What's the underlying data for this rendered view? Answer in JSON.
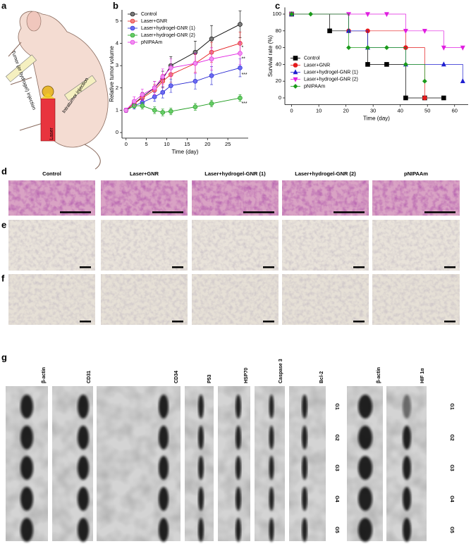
{
  "panel_labels": [
    "a",
    "b",
    "c",
    "d",
    "e",
    "f",
    "g"
  ],
  "panel_a": {
    "left_injection": "Tumor (or hydrogel) injection",
    "right_injection": "Intratumor injection",
    "laser": "Laser"
  },
  "chart_data": [
    {
      "type": "line",
      "xlabel": "Time (day)",
      "ylabel": "Relative tumor volume",
      "x": [
        0,
        2,
        4,
        7,
        9,
        11,
        17,
        21,
        28
      ],
      "xlim": [
        -1,
        30
      ],
      "xticks": [
        0,
        5,
        10,
        15,
        20,
        25
      ],
      "ylim": [
        -0.25,
        5.5
      ],
      "yticks": [
        0,
        1,
        2,
        3,
        4,
        5
      ],
      "legend": "upper left",
      "series": [
        {
          "name": "Control",
          "color": "#000000",
          "fill": "#7a7a7a",
          "values": [
            1,
            1.3,
            1.6,
            2.0,
            2.4,
            3.0,
            3.6,
            4.2,
            4.85
          ],
          "errors": [
            0.1,
            0.15,
            0.2,
            0.3,
            0.35,
            0.4,
            0.5,
            0.6,
            0.6
          ]
        },
        {
          "name": "Laser+GNR",
          "color": "#e41a1c",
          "fill": "#f08080",
          "values": [
            1,
            1.3,
            1.55,
            1.9,
            2.3,
            2.6,
            3.1,
            3.6,
            4.0
          ],
          "errors": [
            0.1,
            0.15,
            0.2,
            0.25,
            0.3,
            0.35,
            0.4,
            0.45,
            0.5
          ]
        },
        {
          "name": "Laser+hydrogel-GNR (1)",
          "color": "#1f1fd0",
          "fill": "#6a6af0",
          "values": [
            1,
            1.2,
            1.35,
            1.6,
            1.8,
            2.1,
            2.3,
            2.55,
            2.9
          ],
          "errors": [
            0.1,
            0.15,
            0.15,
            0.2,
            0.25,
            0.3,
            0.35,
            0.4,
            0.4
          ]
        },
        {
          "name": "Laser+hydrogel-GNR (2)",
          "color": "#1a9a1a",
          "fill": "#66cc66",
          "values": [
            1,
            1.2,
            1.2,
            1.0,
            0.9,
            0.95,
            1.15,
            1.3,
            1.55
          ],
          "errors": [
            0.1,
            0.1,
            0.15,
            0.15,
            0.15,
            0.15,
            0.15,
            0.15,
            0.15
          ]
        },
        {
          "name": "pNIPAAm",
          "color": "#e01ee0",
          "fill": "#f08ff0",
          "values": [
            1,
            1.4,
            1.7,
            2.0,
            2.5,
            2.9,
            3.1,
            3.3,
            3.55
          ],
          "errors": [
            0.1,
            0.2,
            0.25,
            0.3,
            0.35,
            0.4,
            0.45,
            0.5,
            0.5
          ]
        }
      ],
      "annotations": [
        "*",
        "**",
        "***",
        "***"
      ]
    },
    {
      "type": "step",
      "xlabel": "Time (day)",
      "ylabel": "Survival rate (%)",
      "xlim": [
        -2.5,
        65
      ],
      "xticks": [
        0,
        10,
        20,
        30,
        40,
        50,
        60
      ],
      "ylim": [
        -8,
        108
      ],
      "yticks": [
        0,
        20,
        40,
        60,
        80,
        100
      ],
      "legend": "lower left",
      "series": [
        {
          "name": "Control",
          "color": "#000000",
          "marker": "square",
          "x": [
            0,
            14,
            28,
            35,
            42,
            49,
            56
          ],
          "values": [
            100,
            80,
            40,
            40,
            0,
            0,
            0
          ]
        },
        {
          "name": "Laser+GNR",
          "color": "#e41a1c",
          "marker": "circle",
          "x": [
            0,
            21,
            28,
            42,
            49
          ],
          "values": [
            100,
            80,
            80,
            60,
            0
          ]
        },
        {
          "name": "Laser+hydrogel-GNR (1)",
          "color": "#1f1fd0",
          "marker": "triangle-up",
          "x": [
            0,
            21,
            28,
            42,
            56,
            63
          ],
          "values": [
            100,
            80,
            60,
            40,
            40,
            20
          ]
        },
        {
          "name": "Laser+hydrogel-GNR (2)",
          "color": "#e01ee0",
          "marker": "triangle-down",
          "x": [
            0,
            21,
            28,
            35,
            42,
            49,
            56,
            63
          ],
          "values": [
            100,
            100,
            100,
            100,
            80,
            80,
            60,
            60
          ]
        },
        {
          "name": "pNIPAAm",
          "color": "#1a9a1a",
          "marker": "diamond",
          "x": [
            0,
            7,
            21,
            28,
            35,
            42,
            49
          ],
          "values": [
            100,
            100,
            60,
            60,
            60,
            40,
            20
          ]
        }
      ]
    }
  ],
  "histology": {
    "columns": [
      "Control",
      "Laser+GNR",
      "Laser+hydrogel-GNR (1)",
      "Laser+hydrogel-GNR (2)",
      "pNIPAAm"
    ]
  },
  "western_blot": {
    "markers": [
      "β-actin",
      "CD31",
      "CD34",
      "P53",
      "HSP70",
      "Caspase 3",
      "Bcl-2",
      "β-actin",
      "HIF 1α"
    ],
    "lanes": [
      "G1",
      "G2",
      "G3",
      "G4",
      "G5"
    ]
  }
}
